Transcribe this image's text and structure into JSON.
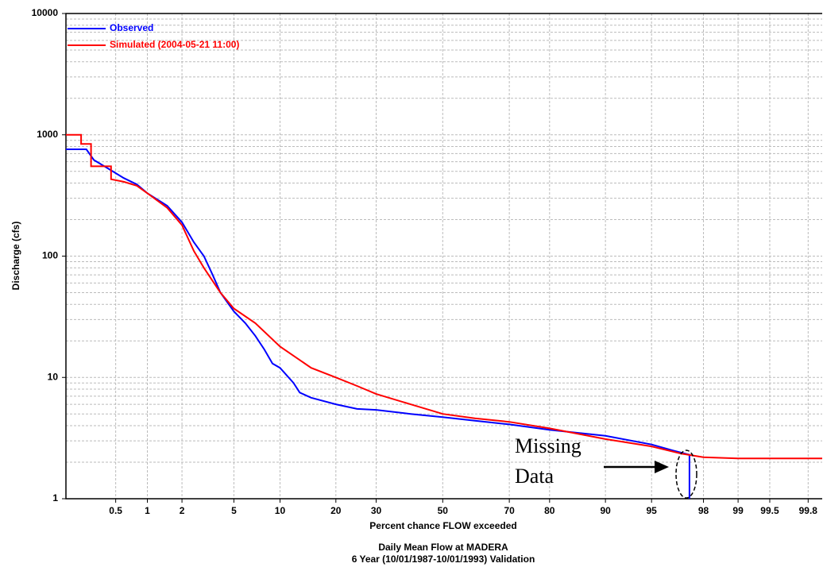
{
  "chart_data": {
    "type": "line",
    "title": "Daily Mean Flow at MADERA",
    "subtitle": "6 Year (10/01/1987-10/01/1993) Validation",
    "x_label": "Percent chance FLOW exceeded",
    "y_label": "Discharge (cfs)",
    "xscale": "probability",
    "yscale": "log",
    "grid": true,
    "minor_grid": true,
    "legend": "upper-left",
    "xlim": [
      0.15,
      99.86
    ],
    "ylim": [
      1,
      10000
    ],
    "xticks": [
      0.5,
      1,
      2,
      5,
      10,
      20,
      30,
      50,
      70,
      80,
      90,
      95,
      98,
      99,
      99.5,
      99.8
    ],
    "yticks": [
      1,
      10,
      100,
      1000,
      10000
    ],
    "annotation_lines": [
      "Missing",
      "Data"
    ],
    "series": [
      {
        "name": "Observed",
        "color": "#0000ff",
        "x": [
          0.15,
          0.25,
          0.3,
          0.4,
          0.6,
          0.8,
          1,
          1.5,
          2,
          2.5,
          3,
          3.5,
          4,
          5,
          6,
          7,
          8,
          9,
          10,
          12,
          13,
          15,
          20,
          25,
          30,
          40,
          50,
          60,
          70,
          80,
          90,
          95,
          96.5,
          97.4,
          97.4
        ],
        "values": [
          760,
          760,
          620,
          540,
          440,
          390,
          330,
          260,
          190,
          130,
          100,
          70,
          50,
          35,
          28,
          22,
          17,
          13,
          12,
          9,
          7.5,
          6.8,
          6.0,
          5.5,
          5.4,
          5.0,
          4.7,
          4.4,
          4.1,
          3.7,
          3.3,
          2.8,
          2.5,
          2.3,
          1.0
        ]
      },
      {
        "name": "Simulated (2004-05-21 11:00)",
        "color": "#ff0000",
        "x": [
          0.15,
          0.22,
          0.22,
          0.28,
          0.28,
          0.45,
          0.45,
          0.6,
          0.8,
          1,
          1.5,
          2,
          2.5,
          3,
          4,
          5,
          7,
          10,
          15,
          20,
          25,
          30,
          40,
          50,
          60,
          70,
          80,
          90,
          95,
          97,
          98,
          99,
          99.86
        ],
        "values": [
          1000,
          1000,
          840,
          840,
          550,
          550,
          430,
          410,
          380,
          330,
          250,
          180,
          110,
          80,
          50,
          37,
          28,
          18,
          12,
          10,
          8.5,
          7.3,
          6,
          5,
          4.6,
          4.3,
          3.8,
          3.1,
          2.7,
          2.35,
          2.2,
          2.15,
          2.15
        ]
      }
    ]
  }
}
